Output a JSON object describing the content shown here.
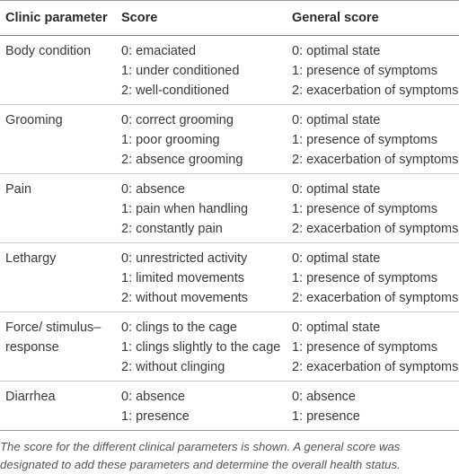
{
  "table": {
    "headers": [
      "Clinic parameter",
      "Score",
      "General score"
    ],
    "rows": [
      {
        "parameter": "Body condition",
        "scores": [
          "0: emaciated",
          "1: under conditioned",
          "2: well-conditioned"
        ],
        "general": [
          "0: optimal state",
          "1: presence of symptoms",
          "2: exacerbation of symptoms"
        ]
      },
      {
        "parameter": "Grooming",
        "scores": [
          "0: correct grooming",
          "1: poor grooming",
          "2: absence grooming"
        ],
        "general": [
          "0: optimal state",
          "1: presence of symptoms",
          "2: exacerbation of symptoms"
        ]
      },
      {
        "parameter": "Pain",
        "scores": [
          "0: absence",
          "1: pain when handling",
          "2: constantly pain"
        ],
        "general": [
          "0: optimal state",
          "1: presence of symptoms",
          "2: exacerbation of symptoms"
        ]
      },
      {
        "parameter": "Lethargy",
        "scores": [
          "0: unrestricted activity",
          "1: limited movements",
          "2: without movements"
        ],
        "general": [
          "0: optimal state",
          "1: presence of symptoms",
          "2: exacerbation of symptoms"
        ]
      },
      {
        "parameter": "Force/ stimulus–response",
        "scores": [
          "0: clings to the cage",
          "1: clings slightly to the cage",
          "2: without clinging"
        ],
        "general": [
          "0: optimal state",
          "1: presence of symptoms",
          "2: exacerbation of symptoms"
        ]
      },
      {
        "parameter": "Diarrhea",
        "scores": [
          "0: absence",
          "1: presence"
        ],
        "general": [
          "0: absence",
          "1: presence"
        ]
      }
    ]
  },
  "caption": "The score for the different clinical parameters is shown. A general score was designated to add these parameters and determine the overall health status."
}
